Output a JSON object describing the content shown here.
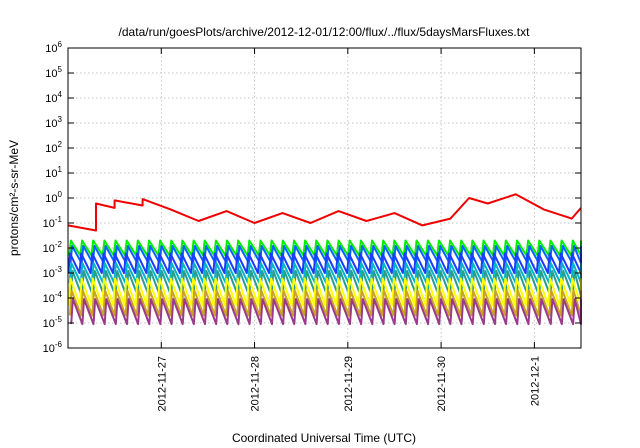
{
  "chart_data": {
    "type": "line",
    "title": "/data/run/goesPlots/archive/2012-12-01/12:00/flux/../flux/5daysMarsFluxes.txt",
    "xlabel": "Coordinated Universal Time (UTC)",
    "ylabel": "protons/cm²-s-sr-MeV",
    "y_scale": "log",
    "ylim": [
      1e-06,
      1000000.0
    ],
    "y_ticks": [
      {
        "base": "10",
        "exp": "-6"
      },
      {
        "base": "10",
        "exp": "-5"
      },
      {
        "base": "10",
        "exp": "-4"
      },
      {
        "base": "10",
        "exp": "-3"
      },
      {
        "base": "10",
        "exp": "-2"
      },
      {
        "base": "10",
        "exp": "-1"
      },
      {
        "base": "10",
        "exp": "0"
      },
      {
        "base": "10",
        "exp": "1"
      },
      {
        "base": "10",
        "exp": "2"
      },
      {
        "base": "10",
        "exp": "3"
      },
      {
        "base": "10",
        "exp": "4"
      },
      {
        "base": "10",
        "exp": "5"
      },
      {
        "base": "10",
        "exp": "6"
      }
    ],
    "xlim": [
      "2012-11-26 00:00",
      "2012-12-01 12:00"
    ],
    "x_ticks": [
      "2012-11-27",
      "2012-11-28",
      "2012-11-29",
      "2012-11-30",
      "2012-12-1"
    ],
    "grid": true,
    "legend": "none",
    "series": [
      {
        "color": "#ee0000",
        "pattern": "sawtooth",
        "x_days": [
          0.0,
          0.3,
          0.3,
          0.5,
          0.5,
          0.8,
          0.8,
          1.1,
          1.4,
          1.7,
          2.0,
          2.3,
          2.6,
          2.9,
          3.2,
          3.5,
          3.8,
          4.1,
          4.3,
          4.5,
          4.8,
          5.1,
          5.4,
          5.5
        ],
        "values": [
          0.08,
          0.05,
          0.6,
          0.4,
          0.8,
          0.5,
          0.9,
          0.35,
          0.12,
          0.3,
          0.1,
          0.25,
          0.1,
          0.3,
          0.12,
          0.25,
          0.08,
          0.15,
          1.0,
          0.6,
          1.4,
          0.35,
          0.15,
          0.4
        ]
      },
      {
        "color": "#00ee00",
        "pattern": "sawtooth",
        "min": 0.005,
        "max": 0.02
      },
      {
        "color": "#0066ff",
        "pattern": "sawtooth",
        "min": 0.0025,
        "max": 0.012
      },
      {
        "color": "#1e3cff",
        "pattern": "sawtooth",
        "min": 0.001,
        "max": 0.006
      },
      {
        "color": "#00b4c8",
        "pattern": "sawtooth",
        "min": 0.0004,
        "max": 0.0025
      },
      {
        "color": "#2a9d8f",
        "pattern": "sawtooth",
        "min": 0.00012,
        "max": 0.0012
      },
      {
        "color": "#ffff00",
        "pattern": "sawtooth",
        "min": 5e-05,
        "max": 0.0006
      },
      {
        "color": "#c9a227",
        "pattern": "sawtooth",
        "min": 2e-05,
        "max": 0.0002
      },
      {
        "color": "#9b3a8a",
        "pattern": "sawtooth",
        "min": 9e-06,
        "max": 9e-05
      }
    ]
  }
}
